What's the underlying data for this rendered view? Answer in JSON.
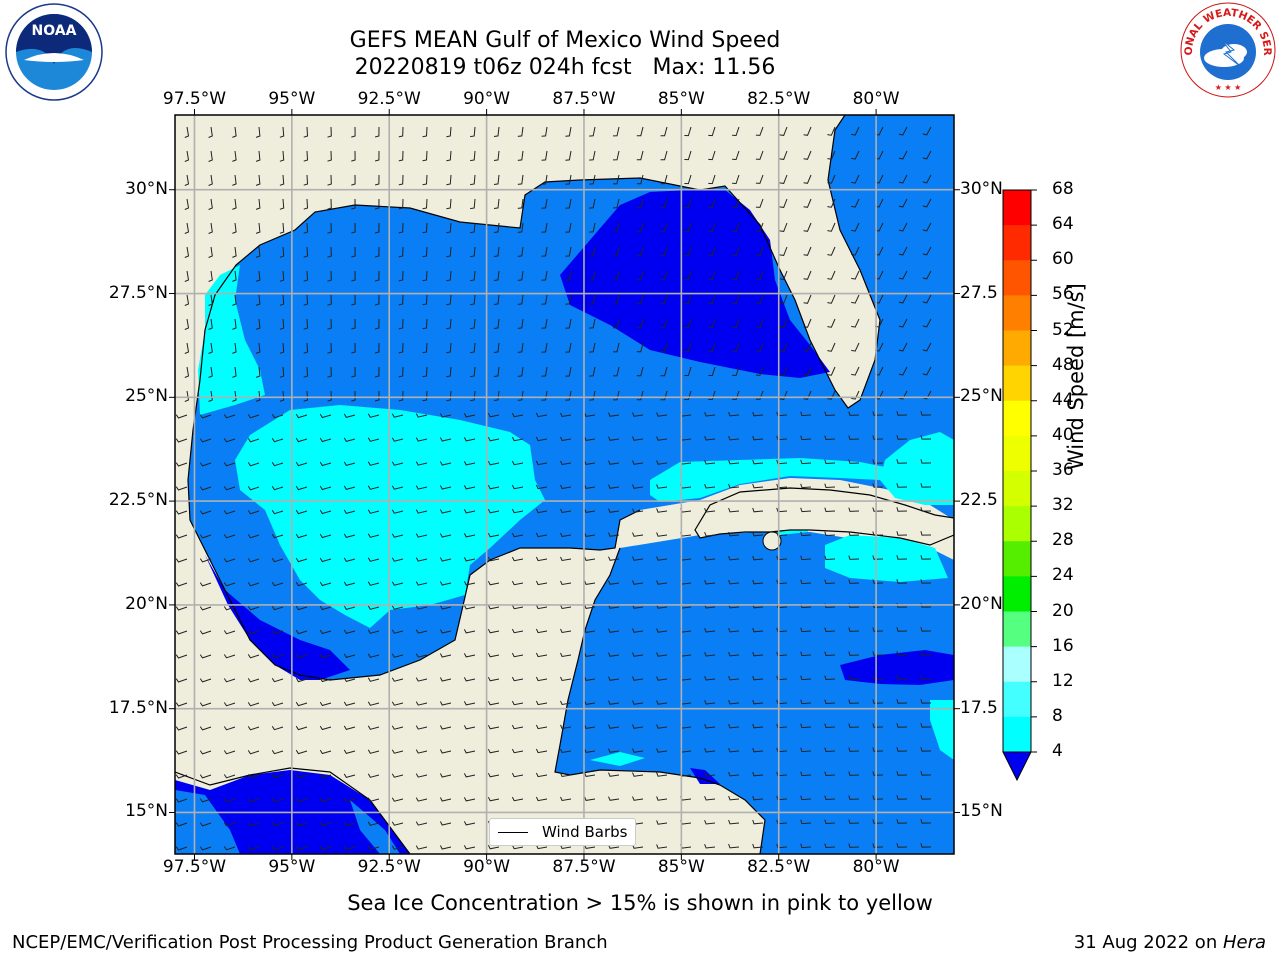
{
  "title": {
    "line1": "GEFS MEAN Gulf of Mexico Wind Speed",
    "line2": "20220819 t06z 024h fcst   Max: 11.56"
  },
  "map": {
    "lon_labels": [
      "97.5°W",
      "95°W",
      "92.5°W",
      "90°W",
      "87.5°W",
      "85°W",
      "82.5°W",
      "80°W"
    ],
    "lat_labels_left": [
      "30°N",
      "27.5°N",
      "25°N",
      "22.5°N",
      "20°N",
      "17.5°N",
      "15°N"
    ],
    "lat_labels_right": [
      "30°N",
      "27.5",
      "25°N",
      "22.5",
      "20°N",
      "17.5",
      "15°N"
    ],
    "lon_range": [
      -98,
      -78
    ],
    "lat_range": [
      14,
      31.8
    ],
    "colors": {
      "land": "#efeddc",
      "ocean_4_8": "#0a7ff5",
      "ocean_0_4": "#0000f0",
      "ocean_8_12": "#00ffff",
      "ocean_12_16": "#44fefe"
    }
  },
  "legend": {
    "label": "Wind Barbs"
  },
  "colorbar": {
    "title": "Wind Speed [m/s]",
    "ticks": [
      "68",
      "64",
      "60",
      "56",
      "52",
      "48",
      "44",
      "40",
      "36",
      "32",
      "28",
      "24",
      "20",
      "16",
      "12",
      "8",
      "4"
    ],
    "colors": [
      "#ff0000",
      "#ff2a00",
      "#ff5500",
      "#ff7f00",
      "#ffaa00",
      "#ffd400",
      "#ffff00",
      "#eeff00",
      "#d4ff00",
      "#aaff00",
      "#55ee00",
      "#00ee00",
      "#55ff7f",
      "#aaffff",
      "#44ffff",
      "#00ffff",
      "#0a7ff5"
    ],
    "underflow_color": "#0000f0"
  },
  "subtitle": "Sea Ice Concentration > 15% is shown in pink to yellow",
  "footer": {
    "left": "NCEP/EMC/Verification Post Processing Product Generation Branch",
    "right_prefix": "31 Aug 2022 on ",
    "right_machine": "Hera"
  },
  "logos": {
    "left": "NOAA",
    "right": "NATIONAL WEATHER SERVICE"
  }
}
